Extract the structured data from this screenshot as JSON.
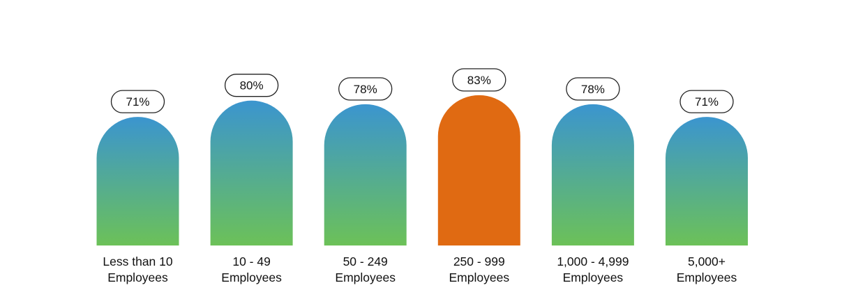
{
  "chart_data": {
    "type": "bar",
    "categories": [
      [
        "Less than 10",
        "Employees"
      ],
      [
        "10 - 49",
        "Employees"
      ],
      [
        "50 - 249",
        "Employees"
      ],
      [
        "250 - 999",
        "Employees"
      ],
      [
        "1,000 - 4,999",
        "Employees"
      ],
      [
        "5,000+",
        "Employees"
      ]
    ],
    "values": [
      71,
      80,
      78,
      83,
      78,
      71
    ],
    "value_labels": [
      "71%",
      "80%",
      "78%",
      "83%",
      "78%",
      "71%"
    ],
    "highlight_index": 3,
    "ylim": [
      0,
      100
    ],
    "grid": false,
    "legend": "none",
    "colors": {
      "gradient_top": "#3b95cf",
      "gradient_bottom": "#6cc158",
      "highlight": "#e06a12",
      "label_text": "#111111",
      "pill_border": "#222222"
    }
  }
}
